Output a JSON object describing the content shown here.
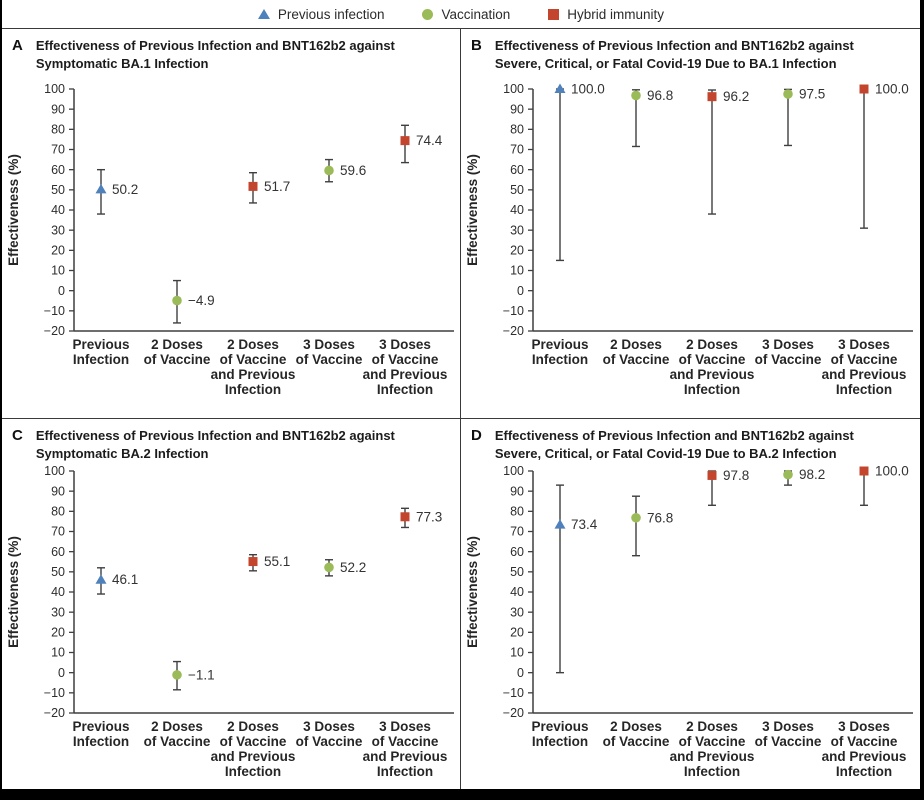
{
  "figure": {
    "legend": [
      {
        "label": "Previous infection",
        "marker": "triangle",
        "color": "#4f81bd"
      },
      {
        "label": "Vaccination",
        "marker": "circle",
        "color": "#9bbb59"
      },
      {
        "label": "Hybrid immunity",
        "marker": "square",
        "color": "#c4452e"
      }
    ],
    "colors": {
      "previous_infection": "#4f81bd",
      "vaccination": "#9bbb59",
      "hybrid_immunity": "#c4452e",
      "axis": "#3f3f3f",
      "error_bar": "#3f3f3f"
    }
  },
  "chart_data": [
    {
      "panel": "A",
      "type": "scatter",
      "title": "Effectiveness of Previous Infection and BNT162b2 against\nSymptomatic BA.1 Infection",
      "ylabel": "Effectiveness (%)",
      "ylim": [
        -20,
        100
      ],
      "yticks": [
        100,
        90,
        80,
        70,
        60,
        50,
        40,
        30,
        20,
        10,
        0,
        -10,
        -20
      ],
      "grid": false,
      "categories": [
        "Previous\nInfection",
        "2 Doses\nof Vaccine",
        "2 Doses\nof Vaccine\nand Previous\nInfection",
        "3 Doses\nof Vaccine",
        "3 Doses\nof Vaccine\nand Previous\nInfection"
      ],
      "points": [
        {
          "value": 50.2,
          "label": "50.2",
          "ci_low": 38,
          "ci_high": 60,
          "marker": "triangle",
          "color": "#4f81bd",
          "series": "Previous infection"
        },
        {
          "value": -4.9,
          "label": "−4.9",
          "ci_low": -16,
          "ci_high": 5,
          "marker": "circle",
          "color": "#9bbb59",
          "series": "Vaccination"
        },
        {
          "value": 51.7,
          "label": "51.7",
          "ci_low": 43.5,
          "ci_high": 58.5,
          "marker": "square",
          "color": "#c4452e",
          "series": "Hybrid immunity"
        },
        {
          "value": 59.6,
          "label": "59.6",
          "ci_low": 54,
          "ci_high": 65,
          "marker": "circle",
          "color": "#9bbb59",
          "series": "Vaccination"
        },
        {
          "value": 74.4,
          "label": "74.4",
          "ci_low": 63.5,
          "ci_high": 82,
          "marker": "square",
          "color": "#c4452e",
          "series": "Hybrid immunity"
        }
      ]
    },
    {
      "panel": "B",
      "type": "scatter",
      "title": "Effectiveness of Previous Infection and BNT162b2 against\nSevere, Critical, or Fatal Covid-19 Due to BA.1 Infection",
      "ylabel": "Effectiveness (%)",
      "ylim": [
        -20,
        100
      ],
      "yticks": [
        100,
        90,
        80,
        70,
        60,
        50,
        40,
        30,
        20,
        10,
        0,
        -10,
        -20
      ],
      "grid": false,
      "categories": [
        "Previous\nInfection",
        "2 Doses\nof Vaccine",
        "2 Doses\nof Vaccine\nand Previous\nInfection",
        "3 Doses\nof Vaccine",
        "3 Doses\nof Vaccine\nand Previous\nInfection"
      ],
      "points": [
        {
          "value": 100.0,
          "label": "100.0",
          "ci_low": 15,
          "ci_high": 100,
          "marker": "triangle",
          "color": "#4f81bd",
          "series": "Previous infection"
        },
        {
          "value": 96.8,
          "label": "96.8",
          "ci_low": 71.5,
          "ci_high": 99.6,
          "marker": "circle",
          "color": "#9bbb59",
          "series": "Vaccination"
        },
        {
          "value": 96.2,
          "label": "96.2",
          "ci_low": 38,
          "ci_high": 99.5,
          "marker": "square",
          "color": "#c4452e",
          "series": "Hybrid immunity"
        },
        {
          "value": 97.5,
          "label": "97.5",
          "ci_low": 72,
          "ci_high": 99.8,
          "marker": "circle",
          "color": "#9bbb59",
          "series": "Vaccination"
        },
        {
          "value": 100.0,
          "label": "100.0",
          "ci_low": 31,
          "ci_high": 100,
          "marker": "square",
          "color": "#c4452e",
          "series": "Hybrid immunity"
        }
      ]
    },
    {
      "panel": "C",
      "type": "scatter",
      "title": "Effectiveness of Previous Infection and BNT162b2 against\nSymptomatic BA.2 Infection",
      "ylabel": "Effectiveness (%)",
      "ylim": [
        -20,
        100
      ],
      "yticks": [
        100,
        90,
        80,
        70,
        60,
        50,
        40,
        30,
        20,
        10,
        0,
        -10,
        -20
      ],
      "grid": false,
      "categories": [
        "Previous\nInfection",
        "2 Doses\nof Vaccine",
        "2 Doses\nof Vaccine\nand Previous\nInfection",
        "3 Doses\nof Vaccine",
        "3 Doses\nof Vaccine\nand Previous\nInfection"
      ],
      "points": [
        {
          "value": 46.1,
          "label": "46.1",
          "ci_low": 39,
          "ci_high": 52,
          "marker": "triangle",
          "color": "#4f81bd",
          "series": "Previous infection"
        },
        {
          "value": -1.1,
          "label": "−1.1",
          "ci_low": -8.5,
          "ci_high": 5.5,
          "marker": "circle",
          "color": "#9bbb59",
          "series": "Vaccination"
        },
        {
          "value": 55.1,
          "label": "55.1",
          "ci_low": 50.5,
          "ci_high": 58.5,
          "marker": "square",
          "color": "#c4452e",
          "series": "Hybrid immunity"
        },
        {
          "value": 52.2,
          "label": "52.2",
          "ci_low": 48,
          "ci_high": 56,
          "marker": "circle",
          "color": "#9bbb59",
          "series": "Vaccination"
        },
        {
          "value": 77.3,
          "label": "77.3",
          "ci_low": 72,
          "ci_high": 81.5,
          "marker": "square",
          "color": "#c4452e",
          "series": "Hybrid immunity"
        }
      ]
    },
    {
      "panel": "D",
      "type": "scatter",
      "title": "Effectiveness of Previous Infection and BNT162b2 against\nSevere, Critical, or Fatal Covid-19 Due to BA.2 Infection",
      "ylabel": "Effectiveness (%)",
      "ylim": [
        -20,
        100
      ],
      "yticks": [
        100,
        90,
        80,
        70,
        60,
        50,
        40,
        30,
        20,
        10,
        0,
        -10,
        -20
      ],
      "grid": false,
      "categories": [
        "Previous\nInfection",
        "2 Doses\nof Vaccine",
        "2 Doses\nof Vaccine\nand Previous\nInfection",
        "3 Doses\nof Vaccine",
        "3 Doses\nof Vaccine\nand Previous\nInfection"
      ],
      "points": [
        {
          "value": 73.4,
          "label": "73.4",
          "ci_low": 0,
          "ci_high": 93,
          "marker": "triangle",
          "color": "#4f81bd",
          "series": "Previous infection"
        },
        {
          "value": 76.8,
          "label": "76.8",
          "ci_low": 58,
          "ci_high": 87.5,
          "marker": "circle",
          "color": "#9bbb59",
          "series": "Vaccination"
        },
        {
          "value": 97.8,
          "label": "97.8",
          "ci_low": 83,
          "ci_high": 100,
          "marker": "square",
          "color": "#c4452e",
          "series": "Hybrid immunity"
        },
        {
          "value": 98.2,
          "label": "98.2",
          "ci_low": 93,
          "ci_high": 100,
          "marker": "circle",
          "color": "#9bbb59",
          "series": "Vaccination"
        },
        {
          "value": 100.0,
          "label": "100.0",
          "ci_low": 83,
          "ci_high": 100,
          "marker": "square",
          "color": "#c4452e",
          "series": "Hybrid immunity"
        }
      ]
    }
  ]
}
